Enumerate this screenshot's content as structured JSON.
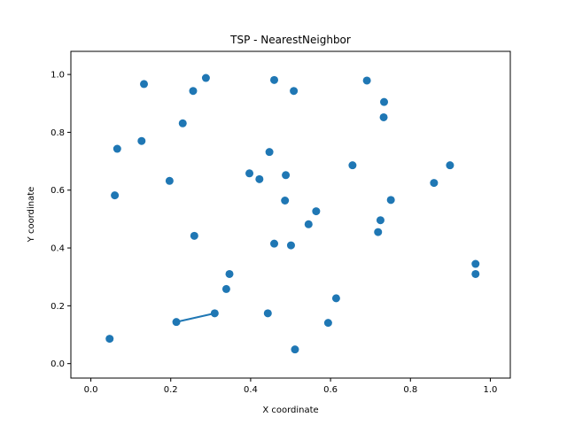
{
  "chart_data": {
    "type": "scatter",
    "title": "TSP - NearestNeighbor",
    "xlabel": "X coordinate",
    "ylabel": "Y coordinate",
    "xlim": [
      -0.05,
      1.05
    ],
    "ylim": [
      -0.05,
      1.08
    ],
    "grid": false,
    "color": "#1f77b4",
    "xticks": [
      "0.0",
      "0.2",
      "0.4",
      "0.6",
      "0.8",
      "1.0"
    ],
    "yticks": [
      "0.0",
      "0.2",
      "0.4",
      "0.6",
      "0.8",
      "1.0"
    ],
    "points": [
      {
        "x": 0.133,
        "y": 0.967
      },
      {
        "x": 0.256,
        "y": 0.943
      },
      {
        "x": 0.288,
        "y": 0.988
      },
      {
        "x": 0.459,
        "y": 0.981
      },
      {
        "x": 0.508,
        "y": 0.943
      },
      {
        "x": 0.691,
        "y": 0.979
      },
      {
        "x": 0.734,
        "y": 0.905
      },
      {
        "x": 0.733,
        "y": 0.852
      },
      {
        "x": 0.23,
        "y": 0.831
      },
      {
        "x": 0.127,
        "y": 0.77
      },
      {
        "x": 0.066,
        "y": 0.743
      },
      {
        "x": 0.447,
        "y": 0.732
      },
      {
        "x": 0.655,
        "y": 0.686
      },
      {
        "x": 0.899,
        "y": 0.686
      },
      {
        "x": 0.397,
        "y": 0.658
      },
      {
        "x": 0.488,
        "y": 0.652
      },
      {
        "x": 0.422,
        "y": 0.638
      },
      {
        "x": 0.197,
        "y": 0.632
      },
      {
        "x": 0.859,
        "y": 0.625
      },
      {
        "x": 0.06,
        "y": 0.582
      },
      {
        "x": 0.486,
        "y": 0.564
      },
      {
        "x": 0.751,
        "y": 0.566
      },
      {
        "x": 0.564,
        "y": 0.527
      },
      {
        "x": 0.725,
        "y": 0.496
      },
      {
        "x": 0.545,
        "y": 0.482
      },
      {
        "x": 0.719,
        "y": 0.455
      },
      {
        "x": 0.259,
        "y": 0.442
      },
      {
        "x": 0.459,
        "y": 0.415
      },
      {
        "x": 0.501,
        "y": 0.409
      },
      {
        "x": 0.963,
        "y": 0.345
      },
      {
        "x": 0.963,
        "y": 0.31
      },
      {
        "x": 0.347,
        "y": 0.31
      },
      {
        "x": 0.339,
        "y": 0.258
      },
      {
        "x": 0.614,
        "y": 0.226
      },
      {
        "x": 0.443,
        "y": 0.174
      },
      {
        "x": 0.31,
        "y": 0.174
      },
      {
        "x": 0.214,
        "y": 0.144
      },
      {
        "x": 0.594,
        "y": 0.141
      },
      {
        "x": 0.047,
        "y": 0.086
      },
      {
        "x": 0.511,
        "y": 0.049
      }
    ],
    "route": [
      {
        "x": 0.31,
        "y": 0.174
      },
      {
        "x": 0.214,
        "y": 0.144
      }
    ]
  }
}
